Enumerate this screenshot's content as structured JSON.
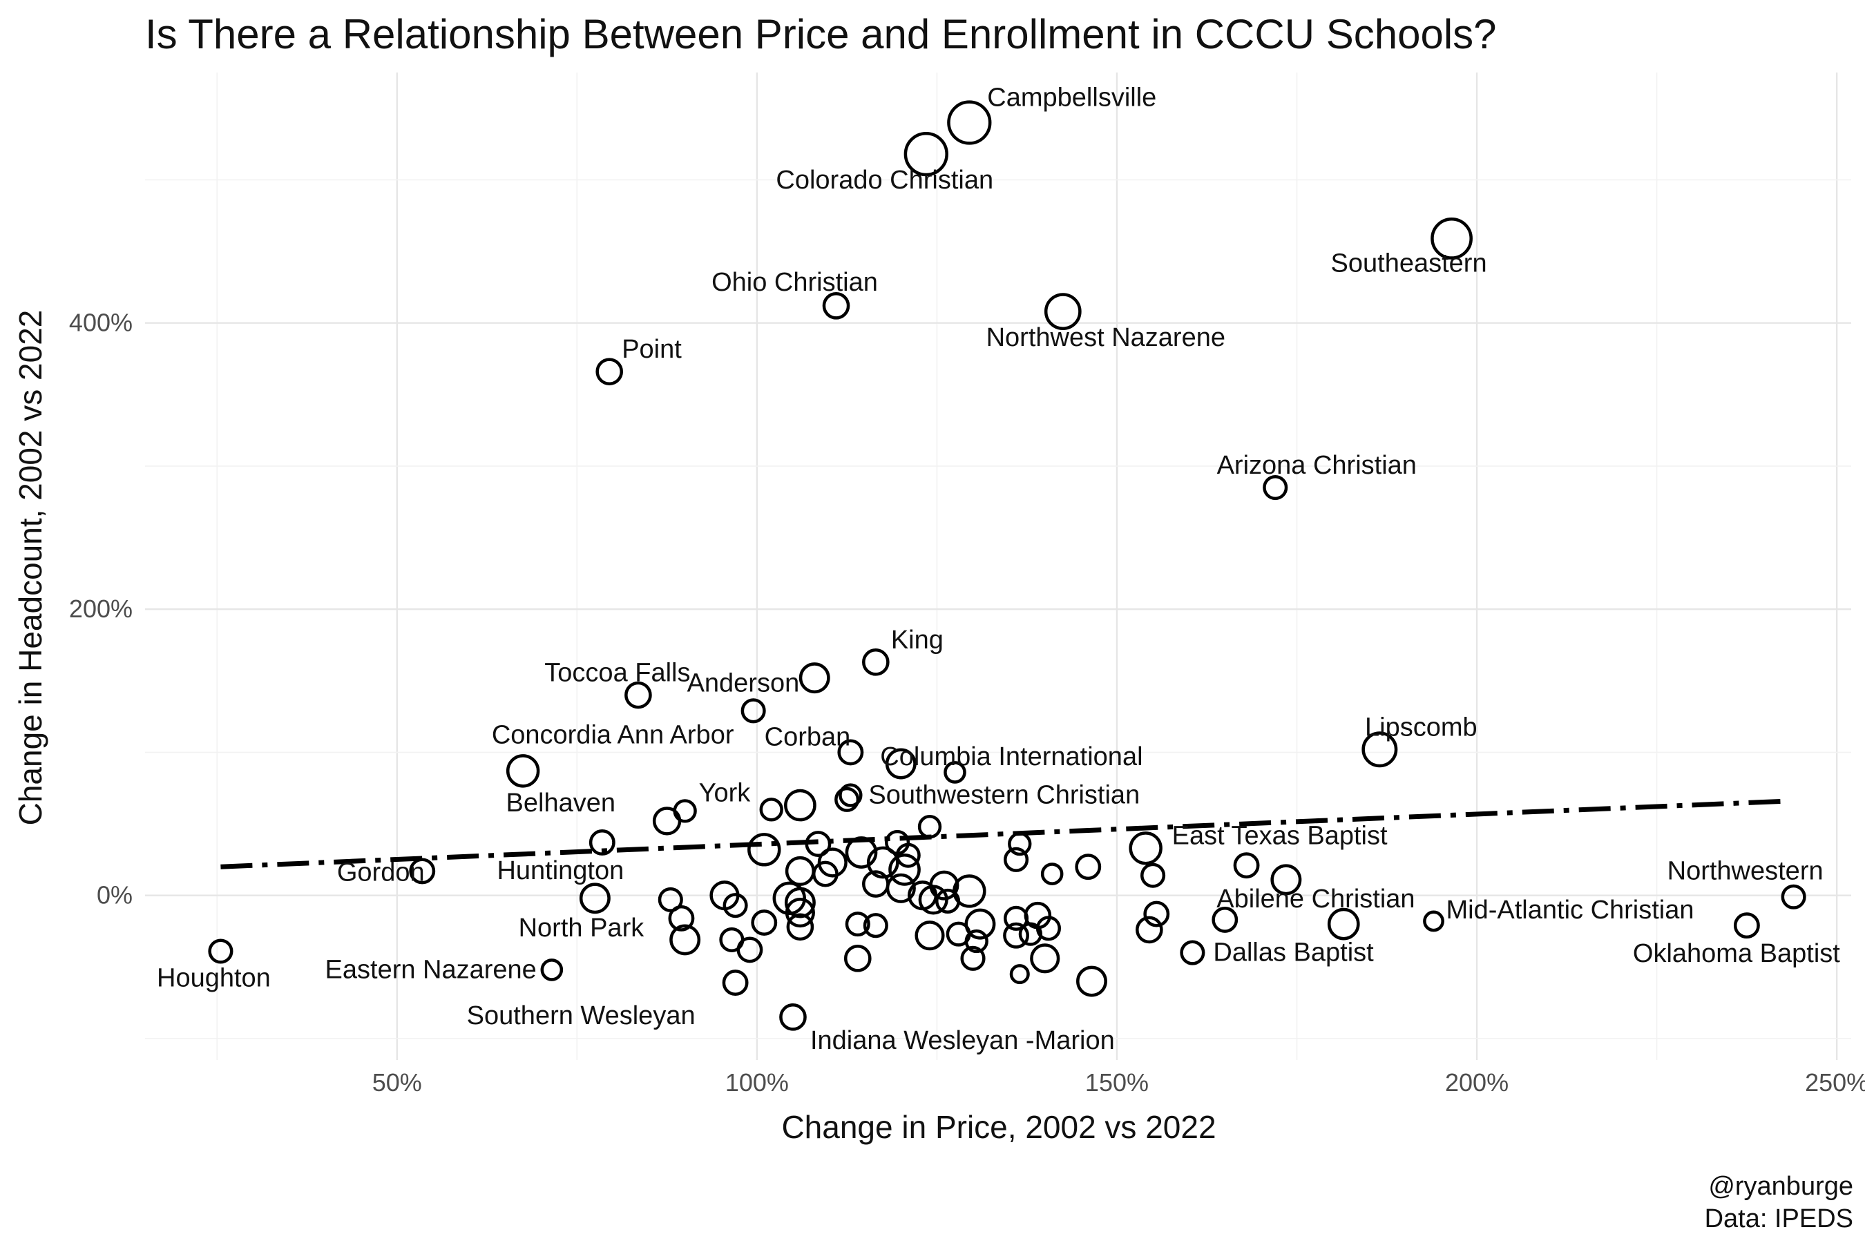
{
  "chart_data": {
    "type": "scatter",
    "title": "Is There a Relationship Between Price and Enrollment in CCCU Schools?",
    "xlabel": "Change in Price, 2002 vs 2022",
    "ylabel": "Change in Headcount, 2002 vs 2022",
    "xlim": [
      15,
      252
    ],
    "ylim": [
      -115,
      575
    ],
    "x_ticks": [
      50,
      100,
      150,
      200,
      250
    ],
    "x_tick_labels": [
      "50%",
      "100%",
      "150%",
      "200%",
      "250%"
    ],
    "y_ticks": [
      0,
      200,
      400
    ],
    "y_tick_labels": [
      "0%",
      "200%",
      "400%"
    ],
    "grid": true,
    "legend": "none",
    "caption": [
      "@ryanburge",
      "Data: IPEDS"
    ],
    "trend_line": {
      "style": "dashed",
      "x": [
        25.5,
        243.5
      ],
      "y": [
        20,
        66
      ]
    },
    "labeled_points": [
      {
        "name": "Campbellsville",
        "x": 129.5,
        "y": 540,
        "size": 26
      },
      {
        "name": "Colorado Christian",
        "x": 123.5,
        "y": 518,
        "size": 26
      },
      {
        "name": "Southeastern",
        "x": 196.5,
        "y": 459,
        "size": 24
      },
      {
        "name": "Ohio Christian",
        "x": 111,
        "y": 412,
        "size": 12
      },
      {
        "name": "Northwest Nazarene",
        "x": 142.5,
        "y": 408,
        "size": 20
      },
      {
        "name": "Point",
        "x": 79.5,
        "y": 366,
        "size": 12
      },
      {
        "name": "Arizona Christian",
        "x": 172,
        "y": 285,
        "size": 10
      },
      {
        "name": "King",
        "x": 116.5,
        "y": 163,
        "size": 12
      },
      {
        "name": "Toccoa Falls",
        "x": 83.5,
        "y": 140,
        "size": 12
      },
      {
        "name": "Anderson",
        "x": 108,
        "y": 152,
        "size": 15
      },
      {
        "name": "Corban",
        "x": 99.5,
        "y": 129,
        "size": 10
      },
      {
        "name": "Concordia Ann Arbor",
        "x": 67.5,
        "y": 87,
        "size": 17
      },
      {
        "name": "Columbia International",
        "x": 120,
        "y": 92,
        "size": 15
      },
      {
        "name": "Lipscomb",
        "x": 186.5,
        "y": 102,
        "size": 19
      },
      {
        "name": "Belhaven",
        "x": 78.5,
        "y": 37,
        "size": 11
      },
      {
        "name": "York",
        "x": 90,
        "y": 59,
        "size": 9
      },
      {
        "name": "Southwestern Christian",
        "x": 113,
        "y": 70,
        "size": 9
      },
      {
        "name": "East Texas Baptist",
        "x": 154,
        "y": 33,
        "size": 17
      },
      {
        "name": "Huntington",
        "x": 77.5,
        "y": -2,
        "size": 15
      },
      {
        "name": "Gordon",
        "x": 53.5,
        "y": 17,
        "size": 11
      },
      {
        "name": "North Park",
        "x": 89.5,
        "y": -16,
        "size": 11
      },
      {
        "name": "Northwestern",
        "x": 244,
        "y": -1,
        "size": 10
      },
      {
        "name": "Abilene Christian",
        "x": 165,
        "y": -17,
        "size": 11
      },
      {
        "name": "Mid-Atlantic Christian",
        "x": 194,
        "y": -18,
        "size": 7
      },
      {
        "name": "Oklahoma Baptist",
        "x": 237.5,
        "y": -21,
        "size": 11
      },
      {
        "name": "Houghton",
        "x": 25.5,
        "y": -39,
        "size": 10
      },
      {
        "name": "Dallas Baptist",
        "x": 160.5,
        "y": -40,
        "size": 10
      },
      {
        "name": "Eastern Nazarene",
        "x": 71.5,
        "y": -52,
        "size": 8
      },
      {
        "name": "Southern Wesleyan",
        "x": 97,
        "y": -61,
        "size": 11
      },
      {
        "name": "Indiana Wesleyan -Marion",
        "x": 105,
        "y": -85,
        "size": 12
      }
    ],
    "other_points": [
      {
        "x": 87.5,
        "y": 52,
        "size": 13
      },
      {
        "x": 102,
        "y": 60,
        "size": 9
      },
      {
        "x": 106,
        "y": 63,
        "size": 16
      },
      {
        "x": 112.5,
        "y": 67,
        "size": 10
      },
      {
        "x": 113,
        "y": 100,
        "size": 11
      },
      {
        "x": 124,
        "y": 48,
        "size": 9
      },
      {
        "x": 127.5,
        "y": 86,
        "size": 8
      },
      {
        "x": 101,
        "y": 32,
        "size": 17
      },
      {
        "x": 108.5,
        "y": 36,
        "size": 11
      },
      {
        "x": 110.5,
        "y": 23,
        "size": 14
      },
      {
        "x": 114.5,
        "y": 30,
        "size": 16
      },
      {
        "x": 117.5,
        "y": 23,
        "size": 16
      },
      {
        "x": 119.5,
        "y": 37,
        "size": 10
      },
      {
        "x": 121,
        "y": 28,
        "size": 10
      },
      {
        "x": 120.5,
        "y": 18,
        "size": 16
      },
      {
        "x": 106,
        "y": 17,
        "size": 14
      },
      {
        "x": 109.5,
        "y": 15,
        "size": 11
      },
      {
        "x": 116.5,
        "y": 8,
        "size": 12
      },
      {
        "x": 120,
        "y": 5,
        "size": 14
      },
      {
        "x": 123,
        "y": 0,
        "size": 14
      },
      {
        "x": 124.5,
        "y": -3,
        "size": 14
      },
      {
        "x": 126,
        "y": 7,
        "size": 14
      },
      {
        "x": 129.5,
        "y": 3,
        "size": 17
      },
      {
        "x": 126.5,
        "y": -4,
        "size": 10
      },
      {
        "x": 104.5,
        "y": -2,
        "size": 17
      },
      {
        "x": 106,
        "y": -5,
        "size": 15
      },
      {
        "x": 106,
        "y": -12,
        "size": 14
      },
      {
        "x": 106,
        "y": -22,
        "size": 12
      },
      {
        "x": 95.5,
        "y": 0,
        "size": 14
      },
      {
        "x": 97,
        "y": -7,
        "size": 10
      },
      {
        "x": 101,
        "y": -19,
        "size": 11
      },
      {
        "x": 88,
        "y": -3,
        "size": 10
      },
      {
        "x": 90,
        "y": -31,
        "size": 15
      },
      {
        "x": 96.5,
        "y": -31,
        "size": 10
      },
      {
        "x": 99,
        "y": -38,
        "size": 11
      },
      {
        "x": 114,
        "y": -20,
        "size": 10
      },
      {
        "x": 116.5,
        "y": -21,
        "size": 10
      },
      {
        "x": 114,
        "y": -44,
        "size": 12
      },
      {
        "x": 124,
        "y": -28,
        "size": 14
      },
      {
        "x": 128,
        "y": -27,
        "size": 10
      },
      {
        "x": 131,
        "y": -20,
        "size": 15
      },
      {
        "x": 130.5,
        "y": -32,
        "size": 9
      },
      {
        "x": 130,
        "y": -44,
        "size": 10
      },
      {
        "x": 136.5,
        "y": 36,
        "size": 9
      },
      {
        "x": 136,
        "y": 25,
        "size": 10
      },
      {
        "x": 141,
        "y": 15,
        "size": 8
      },
      {
        "x": 146,
        "y": 20,
        "size": 11
      },
      {
        "x": 155,
        "y": 14,
        "size": 10
      },
      {
        "x": 168,
        "y": 21,
        "size": 11
      },
      {
        "x": 173.5,
        "y": 11,
        "size": 15
      },
      {
        "x": 136,
        "y": -16,
        "size": 10
      },
      {
        "x": 139,
        "y": -14,
        "size": 12
      },
      {
        "x": 140.5,
        "y": -23,
        "size": 10
      },
      {
        "x": 138,
        "y": -27,
        "size": 9
      },
      {
        "x": 136,
        "y": -28,
        "size": 11
      },
      {
        "x": 140,
        "y": -44,
        "size": 14
      },
      {
        "x": 136.5,
        "y": -55,
        "size": 6
      },
      {
        "x": 146.5,
        "y": -60,
        "size": 15
      },
      {
        "x": 155.5,
        "y": -13,
        "size": 11
      },
      {
        "x": 154.5,
        "y": -24,
        "size": 12
      },
      {
        "x": 181.5,
        "y": -20,
        "size": 16
      }
    ]
  }
}
